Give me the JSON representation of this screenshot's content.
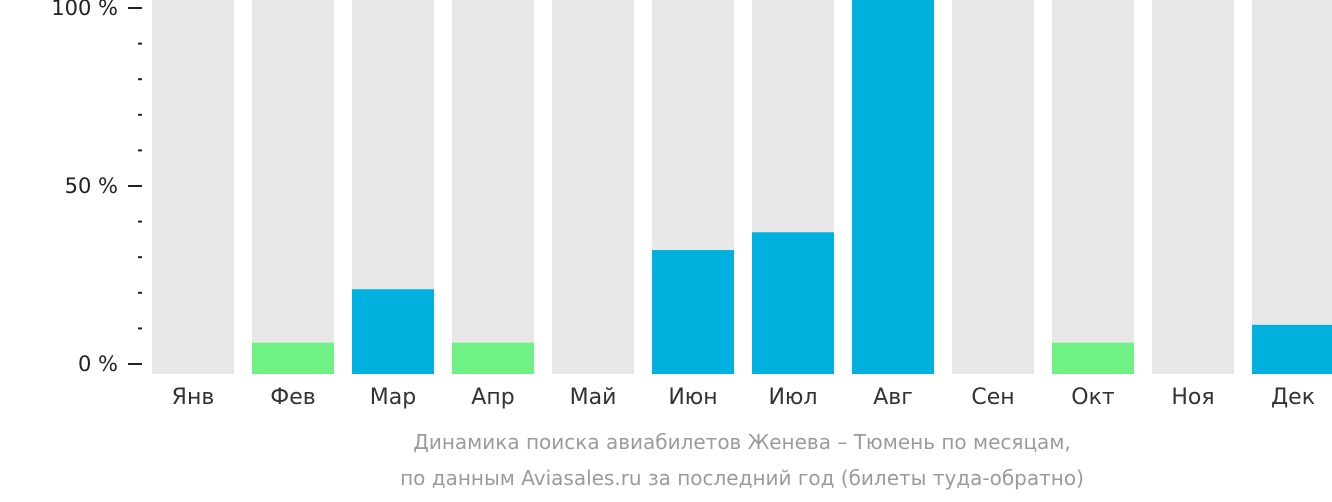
{
  "colors": {
    "track": "#e8e8e8",
    "high": "#00b0de",
    "low": "#6ff283",
    "axis": "#222222"
  },
  "chart_data": {
    "type": "bar",
    "title": "Динамика поиска авиабилетов Женева – Тюмень по месяцам,",
    "subtitle": "по данным Aviasales.ru за последний год (билеты туда-обратно)",
    "xlabel": "",
    "ylabel": "",
    "ylim": [
      0,
      100
    ],
    "grid": false,
    "yticks": [
      {
        "value": 0,
        "label": "0 %"
      },
      {
        "value": 50,
        "label": "50 %"
      },
      {
        "value": 100,
        "label": "100 %"
      }
    ],
    "categories": [
      "Янв",
      "Фев",
      "Мар",
      "Апр",
      "Май",
      "Июн",
      "Июл",
      "Авг",
      "Сен",
      "Окт",
      "Ноя",
      "Дек"
    ],
    "values": [
      0,
      6,
      21,
      6,
      0,
      32,
      37,
      100,
      0,
      6,
      0,
      11
    ],
    "bar_colors": [
      "#00b0de",
      "#6ff283",
      "#00b0de",
      "#6ff283",
      "#00b0de",
      "#00b0de",
      "#00b0de",
      "#00b0de",
      "#00b0de",
      "#6ff283",
      "#00b0de",
      "#00b0de"
    ]
  }
}
